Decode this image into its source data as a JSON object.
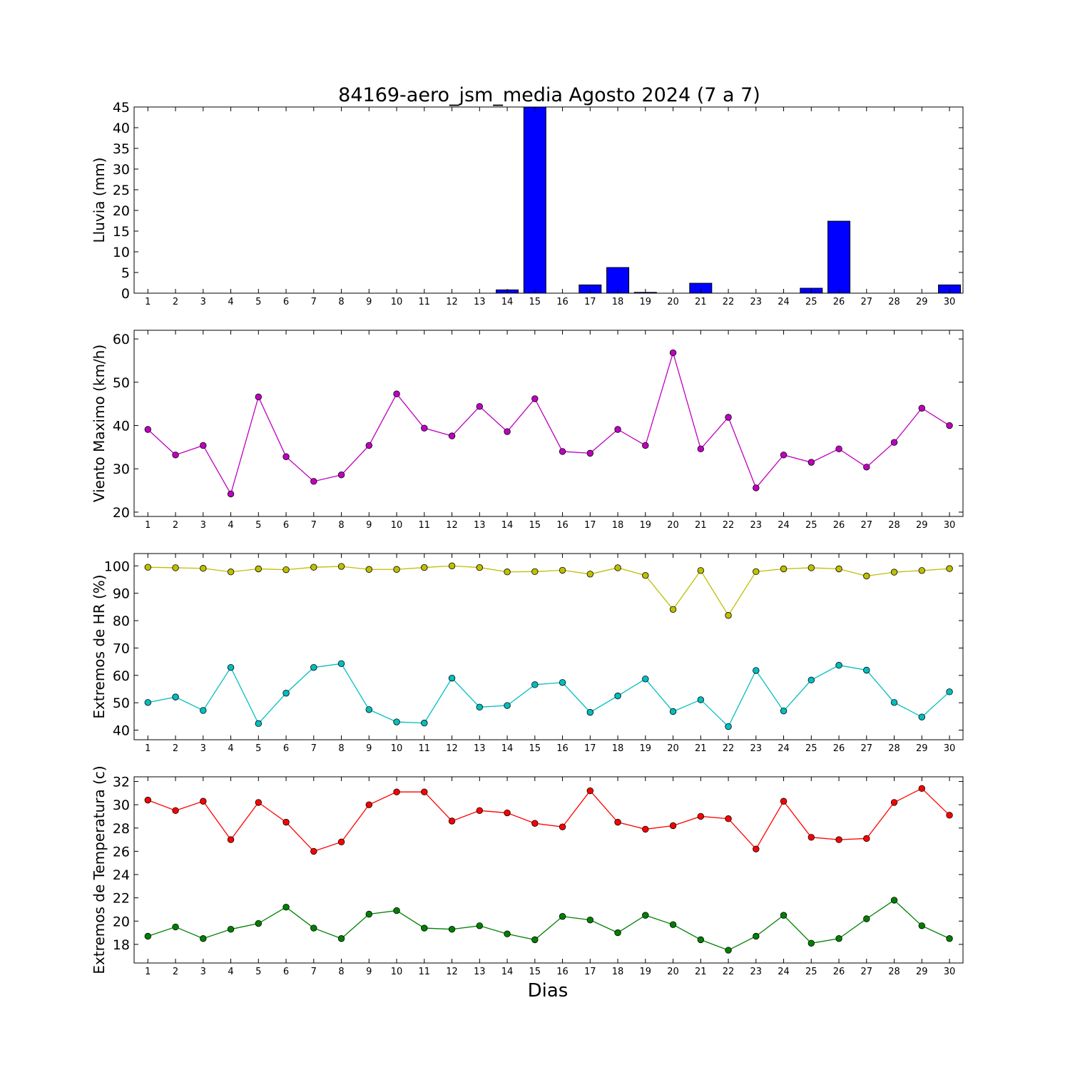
{
  "chart_data": [
    {
      "type": "bar",
      "title": "84169-aero_jsm_media Agosto 2024  (7 a 7)",
      "ylabel": "Lluvia (mm)",
      "ylim": [
        0,
        45
      ],
      "yticks": [
        0,
        5,
        10,
        15,
        20,
        25,
        30,
        35,
        40,
        45
      ],
      "categories": [
        1,
        2,
        3,
        4,
        5,
        6,
        7,
        8,
        9,
        10,
        11,
        12,
        13,
        14,
        15,
        16,
        17,
        18,
        19,
        20,
        21,
        22,
        23,
        24,
        25,
        26,
        27,
        28,
        29,
        30
      ],
      "series": [
        {
          "color": "#0000ff",
          "values": [
            0,
            0,
            0,
            0,
            0,
            0,
            0,
            0,
            0,
            0,
            0,
            0,
            0,
            0.8,
            45,
            0,
            2.0,
            6.2,
            0.2,
            0,
            2.4,
            0,
            0,
            0,
            1.2,
            17.4,
            0,
            0,
            0,
            2.0
          ]
        }
      ]
    },
    {
      "type": "line",
      "ylabel": "Viento Maximo (km/h)",
      "ylim": [
        19,
        62
      ],
      "yticks": [
        20,
        30,
        40,
        50,
        60
      ],
      "x": [
        1,
        2,
        3,
        4,
        5,
        6,
        7,
        8,
        9,
        10,
        11,
        12,
        13,
        14,
        15,
        16,
        17,
        18,
        19,
        20,
        21,
        22,
        23,
        24,
        25,
        26,
        27,
        28,
        29,
        30
      ],
      "series": [
        {
          "color": "#bf00bf",
          "values": [
            39.1,
            33.2,
            35.4,
            24.2,
            46.6,
            32.8,
            27.1,
            28.6,
            35.4,
            47.3,
            39.4,
            37.6,
            44.4,
            38.6,
            46.2,
            34.0,
            33.6,
            39.1,
            35.4,
            56.8,
            34.6,
            41.9,
            25.6,
            33.2,
            31.5,
            34.6,
            30.4,
            36.1,
            44.0,
            40.0
          ]
        }
      ]
    },
    {
      "type": "line",
      "ylabel": "Extremos de HR (%)",
      "ylim": [
        36.5,
        104.5
      ],
      "yticks": [
        40,
        50,
        60,
        70,
        80,
        90,
        100
      ],
      "x": [
        1,
        2,
        3,
        4,
        5,
        6,
        7,
        8,
        9,
        10,
        11,
        12,
        13,
        14,
        15,
        16,
        17,
        18,
        19,
        20,
        21,
        22,
        23,
        24,
        25,
        26,
        27,
        28,
        29,
        30
      ],
      "series": [
        {
          "color": "#bfbf00",
          "values": [
            99.5,
            99.3,
            99.1,
            97.8,
            98.9,
            98.6,
            99.5,
            99.8,
            98.7,
            98.7,
            99.4,
            100,
            99.4,
            97.8,
            97.9,
            98.4,
            97.0,
            99.3,
            96.5,
            84.1,
            98.3,
            81.9,
            97.9,
            98.9,
            99.3,
            98.9,
            96.3,
            97.7,
            98.3,
            99.0
          ]
        },
        {
          "color": "#00bfbf",
          "values": [
            50.1,
            52.1,
            47.2,
            62.9,
            42.4,
            53.5,
            62.9,
            64.3,
            47.5,
            43.0,
            42.6,
            59.0,
            48.4,
            49.0,
            56.6,
            57.4,
            46.5,
            52.5,
            58.7,
            46.8,
            51.1,
            41.3,
            61.8,
            47.0,
            58.3,
            63.7,
            61.9,
            50.1,
            44.8,
            54.0
          ]
        }
      ]
    },
    {
      "type": "line",
      "ylabel": "Extremos de Temperatura (c)",
      "xlabel": "Dias",
      "ylim": [
        16.4,
        32.4
      ],
      "yticks": [
        18,
        20,
        22,
        24,
        26,
        28,
        30,
        32
      ],
      "x": [
        1,
        2,
        3,
        4,
        5,
        6,
        7,
        8,
        9,
        10,
        11,
        12,
        13,
        14,
        15,
        16,
        17,
        18,
        19,
        20,
        21,
        22,
        23,
        24,
        25,
        26,
        27,
        28,
        29,
        30
      ],
      "series": [
        {
          "color": "#ff0000",
          "values": [
            30.4,
            29.5,
            30.3,
            27.0,
            30.2,
            28.5,
            26.0,
            26.8,
            30.0,
            31.1,
            31.1,
            28.6,
            29.5,
            29.3,
            28.4,
            28.1,
            31.2,
            28.5,
            27.9,
            28.2,
            29.0,
            28.8,
            26.2,
            30.3,
            27.2,
            27.0,
            27.1,
            30.2,
            31.4,
            29.1
          ]
        },
        {
          "color": "#008000",
          "values": [
            18.7,
            19.5,
            18.5,
            19.3,
            19.8,
            21.2,
            19.4,
            18.5,
            20.6,
            20.9,
            19.4,
            19.3,
            19.6,
            18.9,
            18.4,
            20.4,
            20.1,
            19.0,
            20.5,
            19.7,
            18.4,
            17.5,
            18.7,
            20.5,
            18.1,
            18.5,
            20.2,
            21.8,
            19.6,
            18.5
          ]
        }
      ]
    }
  ]
}
